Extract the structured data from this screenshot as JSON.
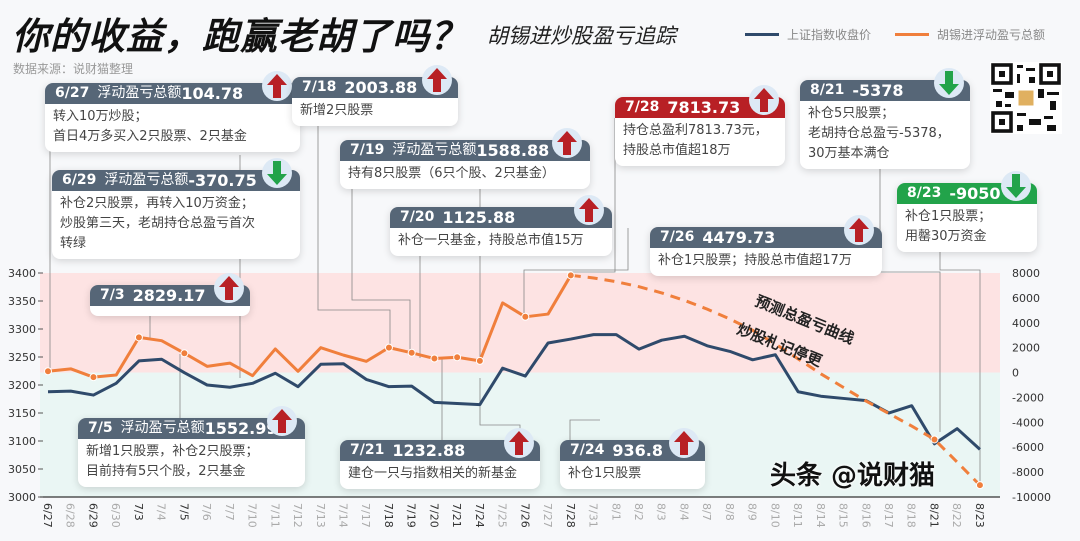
{
  "header": {
    "title": "你的收益，跑赢老胡了吗？",
    "subtitle": "胡锡进炒股盈亏追踪",
    "source": "数据来源：说财猫整理"
  },
  "legend": [
    {
      "label": "上证指数收盘价",
      "color": "#2f4a6b"
    },
    {
      "label": "胡锡进浮动盈亏总额",
      "color": "#f07f3c"
    }
  ],
  "annotations": {
    "forecast_line1": "预测总盈亏曲线",
    "forecast_line2": "炒股札记停更"
  },
  "watermark": "头条 @说财猫",
  "callouts": [
    {
      "date": "6/27",
      "label": "浮动盈亏总额",
      "value": "104.78",
      "dir": "up",
      "lines": [
        "转入10万炒股；",
        "首日4万多买入2只股票、2只基金"
      ]
    },
    {
      "date": "7/18",
      "label": "",
      "value": "2003.88",
      "dir": "up",
      "lines": [
        "新增2只股票"
      ]
    },
    {
      "date": "7/19",
      "label": "浮动盈亏总额",
      "value": "1588.88",
      "dir": "up",
      "lines": [
        "持有8只股票（6只个股、2只基金）"
      ]
    },
    {
      "date": "6/29",
      "label": "浮动盈亏总额",
      "value": "-370.75",
      "dir": "down",
      "lines": [
        "补仓2只股票，再转入10万资金；",
        "炒股第三天，老胡持仓总盈亏首次",
        "转绿"
      ]
    },
    {
      "date": "7/20",
      "label": "",
      "value": "1125.88",
      "dir": "up",
      "lines": [
        "补仓一只基金，持股总市值15万"
      ]
    },
    {
      "date": "7/28",
      "label": "",
      "value": "7813.73",
      "dir": "up",
      "lines": [
        "持仓总盈利7813.73元，",
        "持股总市值超18万"
      ]
    },
    {
      "date": "8/21",
      "label": "",
      "value": "-5378",
      "dir": "down",
      "lines": [
        "补仓5只股票；",
        " 老胡持仓总盈亏-5378，",
        "30万基本满仓"
      ]
    },
    {
      "date": "8/23",
      "label": "",
      "value": "-9050",
      "dir": "down",
      "lines": [
        "补仓1只股票；",
        "用罄30万资金"
      ]
    },
    {
      "date": "7/26",
      "label": "",
      "value": "4479.73",
      "dir": "up",
      "lines": [
        "补仓1只股票；持股总市值超17万"
      ]
    },
    {
      "date": "7/3",
      "label": "",
      "value": "2829.17",
      "dir": "up",
      "lines": []
    },
    {
      "date": "7/5",
      "label": "浮动盈亏总额",
      "value": "1552.99",
      "dir": "up",
      "lines": [
        "新增1只股票，补仓2只股票；",
        "目前持有5只个股，2只基金"
      ]
    },
    {
      "date": "7/21",
      "label": "",
      "value": "1232.88",
      "dir": "up",
      "lines": [
        "建仓一只与指数相关的新基金"
      ]
    },
    {
      "date": "7/24",
      "label": "",
      "value": "936.8",
      "dir": "up",
      "lines": [
        "补仓1只股票"
      ]
    }
  ],
  "chart_data": {
    "type": "line",
    "title": "你的收益，跑赢老胡了吗？",
    "x": [
      "6/27",
      "6/28",
      "6/29",
      "6/30",
      "7/3",
      "7/4",
      "7/5",
      "7/6",
      "7/7",
      "7/10",
      "7/11",
      "7/12",
      "7/13",
      "7/14",
      "7/17",
      "7/18",
      "7/19",
      "7/20",
      "7/21",
      "7/24",
      "7/25",
      "7/26",
      "7/27",
      "7/28",
      "7/31",
      "8/1",
      "8/2",
      "8/3",
      "8/4",
      "8/7",
      "8/8",
      "8/9",
      "8/10",
      "8/11",
      "8/14",
      "8/15",
      "8/16",
      "8/17",
      "8/18",
      "8/21",
      "8/22",
      "8/23"
    ],
    "y_left": {
      "ticks": [
        3000,
        3050,
        3100,
        3150,
        3200,
        3250,
        3300,
        3350,
        3400
      ],
      "range": [
        3000,
        3400
      ]
    },
    "y_right": {
      "ticks": [
        -10000,
        -8000,
        -6000,
        -4000,
        -2000,
        0,
        2000,
        4000,
        6000,
        8000
      ],
      "range": [
        -10000,
        8000
      ]
    },
    "background_bands": {
      "positive": "#fde3e3",
      "negative": "#eaf6f4"
    },
    "series": [
      {
        "name": "上证指数收盘价",
        "axis": "left",
        "color": "#2f4a6b",
        "values": [
          3188,
          3189,
          3182,
          3203,
          3243,
          3246,
          3222,
          3200,
          3196,
          3203,
          3221,
          3197,
          3237,
          3238,
          3210,
          3197,
          3198,
          3169,
          3167,
          3165,
          3230,
          3216,
          3275,
          3282,
          3290,
          3290,
          3264,
          3280,
          3287,
          3270,
          3260,
          3245,
          3254,
          3188,
          3180,
          3176,
          3172,
          3150,
          3163,
          3095,
          3122,
          3085
        ]
      },
      {
        "name": "胡锡进浮动盈亏总额",
        "axis": "right",
        "color": "#f07f3c",
        "values": [
          104.78,
          300,
          -370.75,
          -200,
          2829.17,
          2560,
          1552.99,
          500,
          760,
          -250,
          1900,
          100,
          2000,
          1400,
          900,
          2003.88,
          1588.88,
          1125.88,
          1232.88,
          936.8,
          5600,
          4479.73,
          4700,
          7813.73,
          null,
          null,
          null,
          null,
          null,
          null,
          null,
          null,
          null,
          null,
          null,
          null,
          null,
          null,
          null,
          null,
          null,
          null
        ]
      },
      {
        "name": "预测总盈亏曲线",
        "axis": "right",
        "color": "#f07f3c",
        "dashed": true,
        "values": [
          null,
          null,
          null,
          null,
          null,
          null,
          null,
          null,
          null,
          null,
          null,
          null,
          null,
          null,
          null,
          null,
          null,
          null,
          null,
          null,
          null,
          null,
          null,
          7813.73,
          7600,
          7300,
          6900,
          6400,
          5800,
          5100,
          4300,
          3400,
          2300,
          1100,
          -100,
          -1200,
          -2300,
          -3300,
          -4300,
          -5378,
          -7200,
          -9050
        ]
      }
    ],
    "marked_points": [
      "6/27",
      "6/29",
      "7/3",
      "7/5",
      "7/18",
      "7/19",
      "7/20",
      "7/21",
      "7/24",
      "7/26",
      "7/28",
      "8/21",
      "8/23"
    ]
  }
}
